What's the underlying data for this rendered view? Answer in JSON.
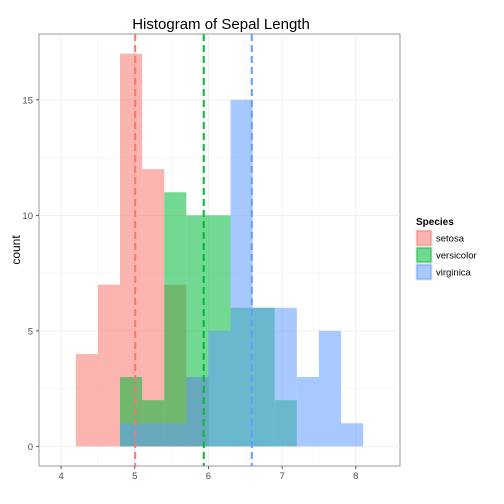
{
  "chart_data": {
    "type": "histogram",
    "title": "Histogram of Sepal Length",
    "xlabel": "",
    "ylabel": "count",
    "xlim": [
      3.7,
      8.6
    ],
    "ylim": [
      -0.85,
      17.85
    ],
    "x_ticks": [
      4,
      5,
      6,
      7,
      8
    ],
    "y_ticks": [
      0,
      5,
      10,
      15
    ],
    "bin_width": 0.3,
    "bin_starts": [
      4.2,
      4.5,
      4.8,
      5.1,
      5.4,
      5.7,
      6.0,
      6.3,
      6.6,
      6.9,
      7.2,
      7.5,
      7.8
    ],
    "grid": true,
    "legend_position": "right",
    "legend_title": "Species",
    "series": [
      {
        "name": "setosa",
        "color": "#F8766D",
        "counts": [
          4,
          7,
          17,
          12,
          7,
          3,
          0,
          0,
          0,
          0,
          0,
          0,
          0
        ],
        "mean": 5.006
      },
      {
        "name": "versicolor",
        "color": "#00BA38",
        "counts": [
          0,
          0,
          3,
          2,
          11,
          10,
          10,
          6,
          6,
          2,
          0,
          0,
          0
        ],
        "mean": 5.936
      },
      {
        "name": "virginica",
        "color": "#619CFF",
        "counts": [
          0,
          0,
          1,
          1,
          1,
          3,
          5,
          15,
          6,
          6,
          3,
          5,
          1
        ],
        "mean": 6.588
      }
    ]
  }
}
